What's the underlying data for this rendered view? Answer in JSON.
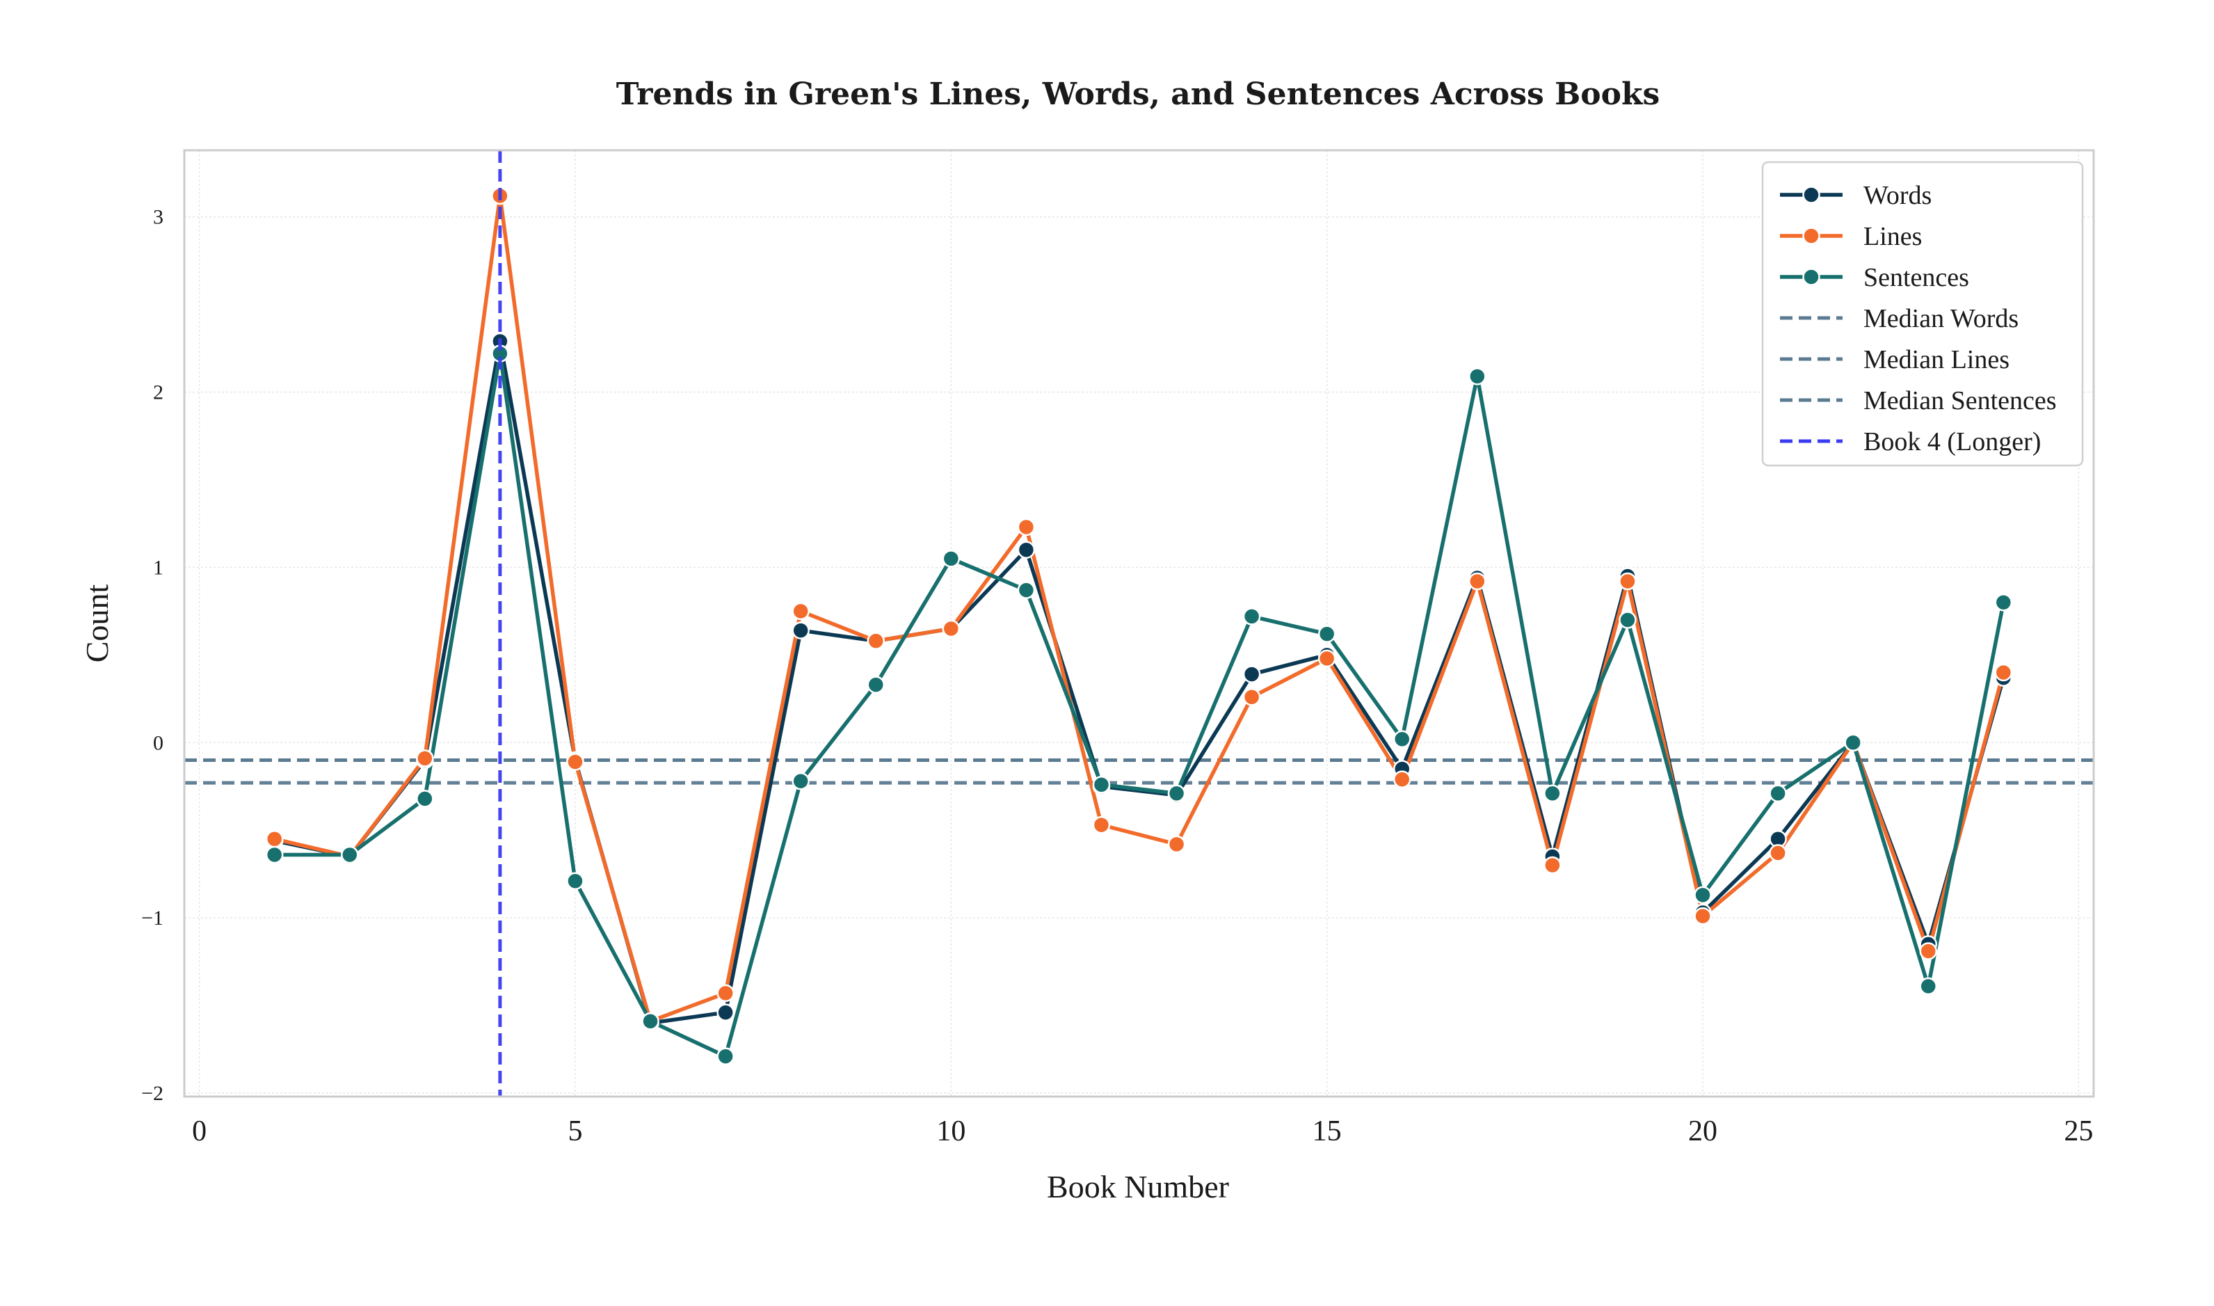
{
  "chart_data": {
    "type": "line",
    "title": "Trends in Green's Lines, Words, and Sentences Across Books",
    "xlabel": "Book Number",
    "ylabel": "Count",
    "xlim": [
      -0.2,
      25.2
    ],
    "ylim": [
      -2.02,
      3.38
    ],
    "xticks": [
      0,
      5,
      10,
      15,
      20,
      25
    ],
    "yticks": [
      -2,
      -1,
      0,
      1,
      2,
      3
    ],
    "ytick_labels": [
      "−2",
      "−1",
      "0",
      "1",
      "2",
      "3"
    ],
    "grid": true,
    "legend_position": "top-right",
    "x": [
      1,
      2,
      3,
      4,
      5,
      6,
      7,
      8,
      9,
      10,
      11,
      12,
      13,
      14,
      15,
      16,
      17,
      18,
      19,
      20,
      21,
      22,
      23,
      24
    ],
    "series": [
      {
        "name": "Words",
        "color": "#0b3954",
        "values": [
          -0.56,
          -0.65,
          -0.1,
          2.29,
          -0.1,
          -1.6,
          -1.54,
          0.64,
          0.58,
          0.65,
          1.1,
          -0.25,
          -0.3,
          0.39,
          0.5,
          -0.15,
          0.94,
          -0.65,
          0.95,
          -0.97,
          -0.55,
          0.0,
          -1.15,
          0.37
        ]
      },
      {
        "name": "Lines",
        "color": "#f26b2b",
        "values": [
          -0.55,
          -0.65,
          -0.09,
          3.12,
          -0.11,
          -1.59,
          -1.43,
          0.75,
          0.58,
          0.65,
          1.23,
          -0.47,
          -0.58,
          0.26,
          0.48,
          -0.21,
          0.92,
          -0.7,
          0.92,
          -0.99,
          -0.63,
          0.0,
          -1.19,
          0.4
        ]
      },
      {
        "name": "Sentences",
        "color": "#17706e",
        "values": [
          -0.64,
          -0.64,
          -0.32,
          2.22,
          -0.79,
          -1.59,
          -1.79,
          -0.22,
          0.33,
          1.05,
          0.87,
          -0.24,
          -0.29,
          0.72,
          0.62,
          0.02,
          2.09,
          -0.29,
          0.7,
          -0.87,
          -0.29,
          0.0,
          -1.39,
          0.8
        ]
      }
    ],
    "reference_lines": [
      {
        "name": "Median Words",
        "axis": "y",
        "value": -0.1,
        "color": "#5b7b91",
        "style": "dashed"
      },
      {
        "name": "Median Lines",
        "axis": "y",
        "value": -0.1,
        "color": "#5b7b91",
        "style": "dashed"
      },
      {
        "name": "Median Sentences",
        "axis": "y",
        "value": -0.23,
        "color": "#5b7b91",
        "style": "dashed"
      },
      {
        "name": "Book 4 (Longer)",
        "axis": "x",
        "value": 4,
        "color": "#3b3bf0",
        "style": "dashed"
      }
    ]
  }
}
